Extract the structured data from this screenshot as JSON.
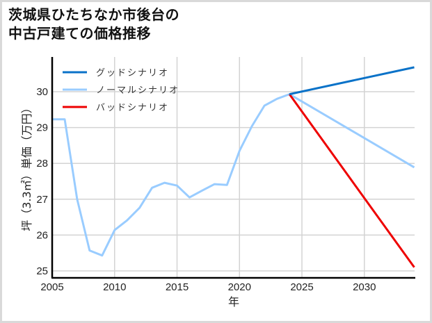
{
  "chart_data": {
    "type": "line",
    "title": "茨城県ひたちなか市後台の\n中古戸建ての価格推移",
    "title_lines": [
      "茨城県ひたちなか市後台の",
      "中古戸建ての価格推移"
    ],
    "xlabel": "年",
    "ylabel": "坪（3.3㎡）単価（万円）",
    "xlim": [
      2005,
      2034
    ],
    "ylim": [
      24.85,
      31.0
    ],
    "x_ticks": [
      2005,
      2010,
      2015,
      2020,
      2025,
      2030
    ],
    "y_ticks": [
      25,
      26,
      27,
      28,
      29,
      30
    ],
    "grid": true,
    "legend_position": "upper left",
    "series": [
      {
        "name": "グッドシナリオ",
        "color": "#0a72c8",
        "x": [
          2024,
          2034
        ],
        "values": [
          29.93,
          30.68
        ]
      },
      {
        "name": "ノーマルシナリオ",
        "color": "#99ccff",
        "x": [
          2005,
          2006,
          2007,
          2008,
          2009,
          2010,
          2011,
          2012,
          2013,
          2014,
          2015,
          2016,
          2017,
          2018,
          2019,
          2020,
          2021,
          2022,
          2023,
          2024,
          2034
        ],
        "values": [
          29.23,
          29.23,
          27.0,
          25.57,
          25.43,
          26.14,
          26.41,
          26.76,
          27.32,
          27.46,
          27.38,
          27.05,
          27.24,
          27.42,
          27.4,
          28.35,
          29.04,
          29.61,
          29.8,
          29.93,
          27.89
        ]
      },
      {
        "name": "バッドシナリオ",
        "color": "#ee0000",
        "x": [
          2024,
          2034
        ],
        "values": [
          29.93,
          25.1
        ]
      }
    ]
  }
}
